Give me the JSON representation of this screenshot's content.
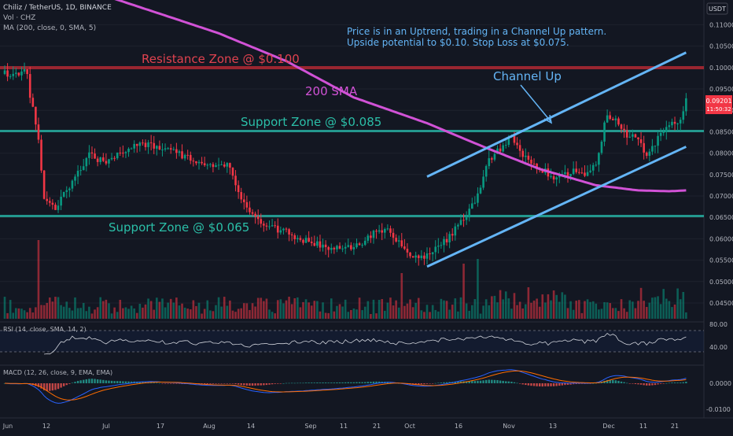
{
  "header": {
    "symbol_line": "Chiliz / TetherUS, 1D, BINANCE",
    "vol_line": "Vol · CHZ",
    "ma_line": "MA (200, close, 0, SMA, 5)"
  },
  "currency_badge": "USDT",
  "price_tag": {
    "value": "0.09201",
    "sub": "11:50:32",
    "color": "#f23645"
  },
  "colors": {
    "background": "#131722",
    "up": "#089981",
    "down": "#f23645",
    "sma": "#d152d6",
    "channel": "#64b5f6",
    "resistance": "#b22833",
    "support": "#26a69a",
    "axis_text": "#b2b5be"
  },
  "annotations": {
    "resistance": "Resistance Zone @ $0.100",
    "support_upper": "Support Zone @ $0.085",
    "support_lower": "Support Zone @ $0.065",
    "sma": "200 SMA",
    "channel": "Channel Up",
    "commentary_1": "Price is in an Uptrend, trading in a Channel Up pattern.",
    "commentary_2": "Upside potential to $0.10. Stop Loss at $0.075."
  },
  "rsi_pane": {
    "label": "RSI (14, close, SMA, 14, 2)",
    "ticks": [
      "80.00",
      "40.00"
    ]
  },
  "macd_pane": {
    "label": "MACD (12, 26, close, 9, EMA, EMA)",
    "ticks": [
      "0.0000",
      "-0.0100"
    ]
  },
  "chart_data": {
    "type": "candlestick",
    "x_ticks": [
      "Jun",
      "12",
      "Jul",
      "17",
      "Aug",
      "14",
      "Sep",
      "11",
      "21",
      "Oct",
      "16",
      "Nov",
      "13",
      "Dec",
      "11",
      "21"
    ],
    "y_ticks": [
      "0.11000",
      "0.10500",
      "0.10000",
      "0.09500",
      "0.09000",
      "0.08500",
      "0.08000",
      "0.07500",
      "0.07000",
      "0.06500",
      "0.06000",
      "0.05500",
      "0.05000",
      "0.04500"
    ],
    "levels": {
      "resistance": 0.1,
      "support_upper": 0.085,
      "support_lower": 0.065
    },
    "price_path": [
      [
        0,
        0.0985
      ],
      [
        6,
        0.0988
      ],
      [
        8,
        0.099
      ],
      [
        9,
        0.0935
      ],
      [
        12,
        0.083
      ],
      [
        14,
        0.0695
      ],
      [
        18,
        0.0675
      ],
      [
        24,
        0.073
      ],
      [
        30,
        0.0795
      ],
      [
        36,
        0.078
      ],
      [
        42,
        0.08
      ],
      [
        48,
        0.0825
      ],
      [
        54,
        0.0815
      ],
      [
        60,
        0.0805
      ],
      [
        66,
        0.0785
      ],
      [
        72,
        0.0778
      ],
      [
        78,
        0.0772
      ],
      [
        80,
        0.0768
      ],
      [
        84,
        0.0695
      ],
      [
        90,
        0.0638
      ],
      [
        96,
        0.0625
      ],
      [
        100,
        0.0615
      ],
      [
        106,
        0.0598
      ],
      [
        112,
        0.0585
      ],
      [
        118,
        0.0578
      ],
      [
        124,
        0.0582
      ],
      [
        128,
        0.0595
      ],
      [
        132,
        0.0618
      ],
      [
        136,
        0.062
      ],
      [
        140,
        0.059
      ],
      [
        144,
        0.0562
      ],
      [
        148,
        0.0555
      ],
      [
        152,
        0.0568
      ],
      [
        158,
        0.0605
      ],
      [
        164,
        0.0655
      ],
      [
        168,
        0.0698
      ],
      [
        172,
        0.0785
      ],
      [
        176,
        0.0812
      ],
      [
        180,
        0.0835
      ],
      [
        184,
        0.0795
      ],
      [
        188,
        0.0772
      ],
      [
        192,
        0.0758
      ],
      [
        196,
        0.0738
      ],
      [
        200,
        0.0752
      ],
      [
        204,
        0.0762
      ],
      [
        206,
        0.0742
      ],
      [
        210,
        0.0775
      ],
      [
        214,
        0.0895
      ],
      [
        218,
        0.0865
      ],
      [
        222,
        0.0832
      ],
      [
        224,
        0.0842
      ],
      [
        228,
        0.0792
      ],
      [
        232,
        0.0835
      ],
      [
        236,
        0.0868
      ],
      [
        240,
        0.0875
      ],
      [
        242,
        0.092
      ]
    ],
    "sma200": [
      [
        30,
        0.118
      ],
      [
        60,
        0.1115
      ],
      [
        76,
        0.108
      ],
      [
        100,
        0.1015
      ],
      [
        124,
        0.093
      ],
      [
        150,
        0.087
      ],
      [
        170,
        0.0815
      ],
      [
        190,
        0.0763
      ],
      [
        210,
        0.0725
      ],
      [
        225,
        0.0713
      ],
      [
        236,
        0.0711
      ],
      [
        242,
        0.0713
      ]
    ],
    "channel_lines": [
      {
        "name": "upper",
        "from": [
          150,
          0.0745
        ],
        "to": [
          242,
          0.1035
        ]
      },
      {
        "name": "lower",
        "from": [
          150,
          0.0535
        ],
        "to": [
          242,
          0.0815
        ]
      }
    ]
  }
}
